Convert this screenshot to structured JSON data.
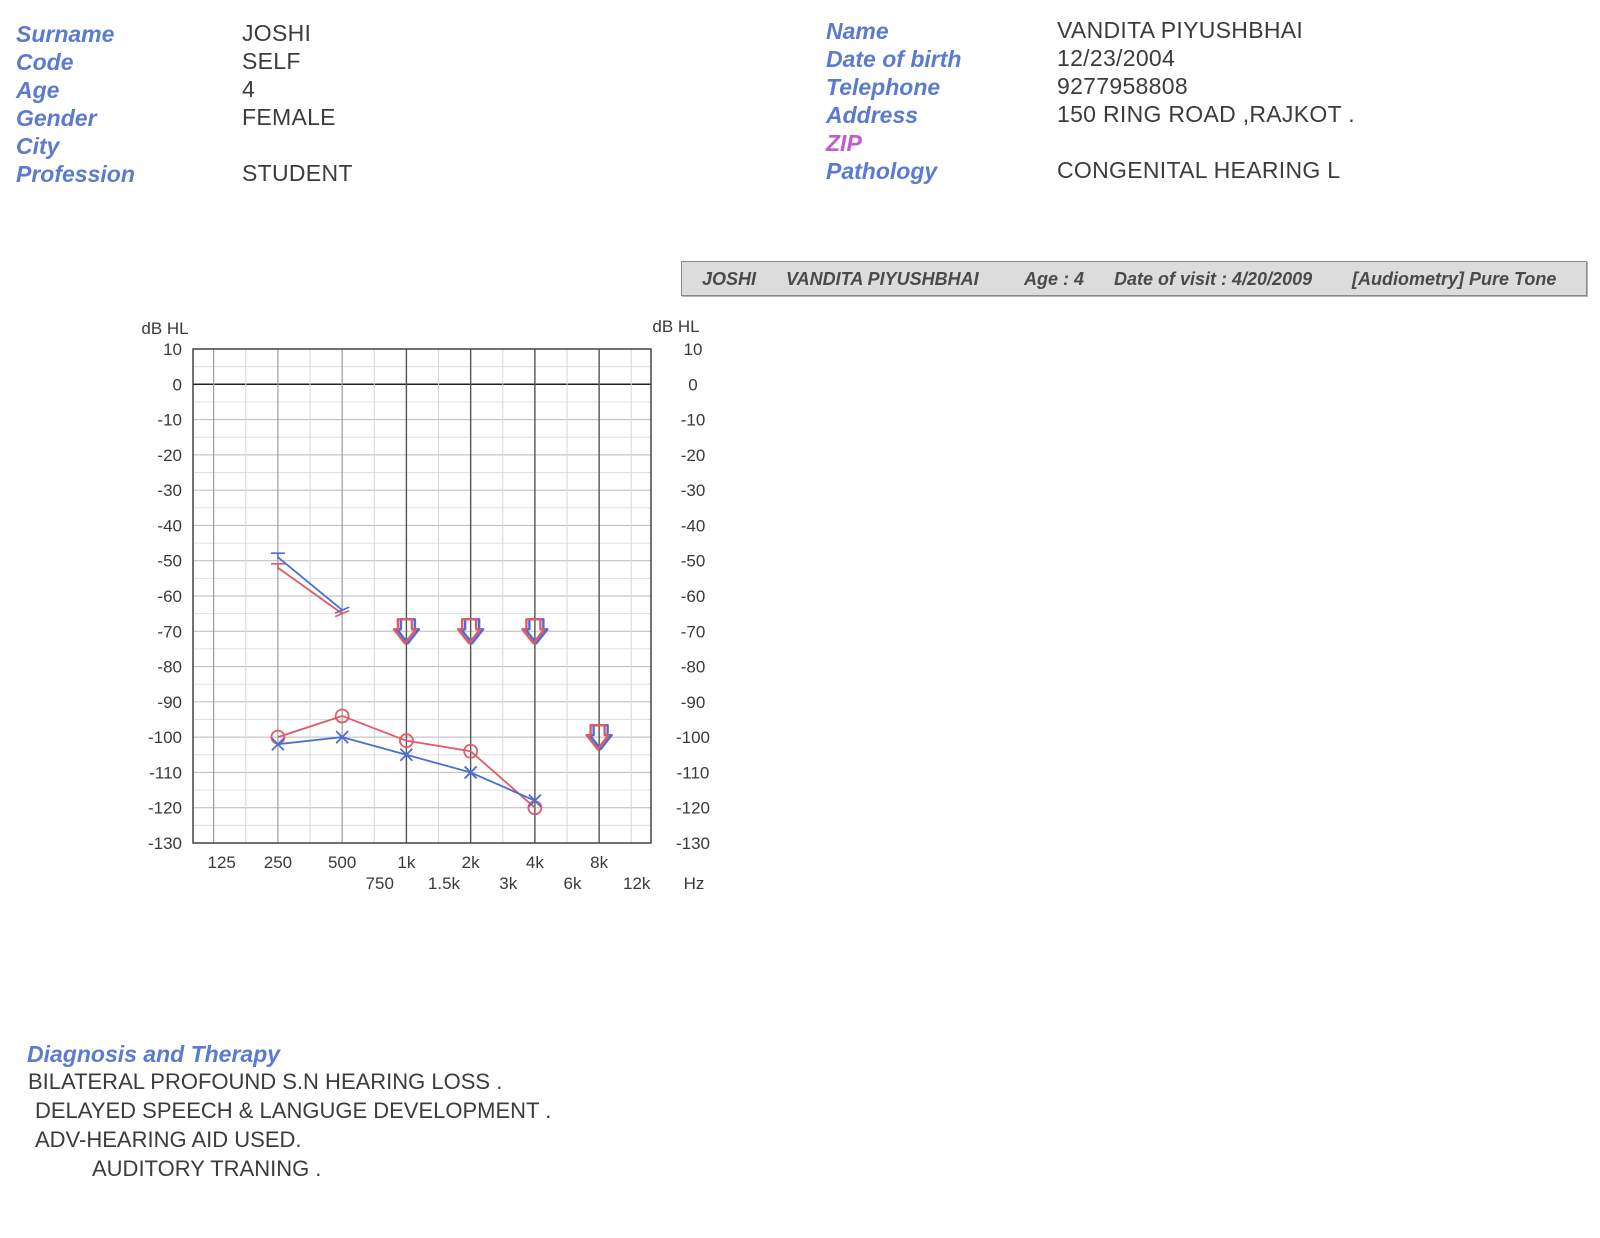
{
  "header": {
    "left": [
      {
        "label": "Surname",
        "value": "JOSHI"
      },
      {
        "label": "Code",
        "value": "SELF"
      },
      {
        "label": "Age",
        "value": "4"
      },
      {
        "label": "Gender",
        "value": "FEMALE"
      },
      {
        "label": "City",
        "value": ""
      },
      {
        "label": "Profession",
        "value": "STUDENT"
      }
    ],
    "right": [
      {
        "label": "Name",
        "value": "VANDITA  PIYUSHBHAI"
      },
      {
        "label": "Date of  birth",
        "value": "12/23/2004"
      },
      {
        "label": "Telephone",
        "value": "9277958808"
      },
      {
        "label": "Address",
        "value": "150 RING ROAD ,RAJKOT ."
      },
      {
        "label": "ZIP",
        "value": ""
      },
      {
        "label": "Pathology",
        "value": "CONGENITAL HEARING L"
      }
    ]
  },
  "title_bar": {
    "surname": "JOSHI",
    "name": "VANDITA  PIYUSHBHAI",
    "age": "Age : 4",
    "visit": "Date of visit : 4/20/2009",
    "test": "[Audiometry] Pure Tone"
  },
  "chart_data": {
    "type": "line",
    "ylabel_left": "dB HL",
    "ylabel_right": "dB HL",
    "xunit": "Hz",
    "ylim": [
      -130,
      10
    ],
    "yticks": [
      10,
      0,
      -10,
      -20,
      -30,
      -40,
      -50,
      -60,
      -70,
      -80,
      -90,
      -100,
      -110,
      -120,
      -130
    ],
    "x_major_ticks": [
      {
        "hz": 125,
        "label": "125"
      },
      {
        "hz": 250,
        "label": "250"
      },
      {
        "hz": 500,
        "label": "500"
      },
      {
        "hz": 1000,
        "label": "1k"
      },
      {
        "hz": 2000,
        "label": "2k"
      },
      {
        "hz": 4000,
        "label": "4k"
      },
      {
        "hz": 8000,
        "label": "8k"
      }
    ],
    "x_minor_ticks": [
      {
        "hz": 750,
        "label": "750"
      },
      {
        "hz": 1500,
        "label": "1.5k"
      },
      {
        "hz": 3000,
        "label": "3k"
      },
      {
        "hz": 6000,
        "label": "6k"
      },
      {
        "hz": 12000,
        "label": "12k"
      }
    ],
    "x_range_hz": [
      100,
      14000
    ],
    "grid": true,
    "series": [
      {
        "ear": "right",
        "kind": "air",
        "color": "#e05a6a",
        "marker": "circle",
        "x": [
          250,
          500,
          1000,
          2000,
          4000
        ],
        "y": [
          -100,
          -94,
          -101,
          -104,
          -120
        ]
      },
      {
        "ear": "left",
        "kind": "air",
        "color": "#4a6fd1",
        "marker": "cross",
        "x": [
          250,
          500,
          1000,
          2000,
          4000
        ],
        "y": [
          -102,
          -100,
          -105,
          -110,
          -118
        ]
      },
      {
        "ear": "right",
        "kind": "bone",
        "color": "#e05a6a",
        "marker": "bracket",
        "x": [
          250,
          500
        ],
        "y": [
          -52,
          -65
        ]
      },
      {
        "ear": "left",
        "kind": "bone",
        "color": "#4a6fd1",
        "marker": "bracket",
        "x": [
          250,
          500
        ],
        "y": [
          -49,
          -64
        ]
      }
    ],
    "no_response": [
      {
        "hz": 1000,
        "y": -70,
        "colors": [
          "#4a6fd1",
          "#e05a6a"
        ]
      },
      {
        "hz": 2000,
        "y": -70,
        "colors": [
          "#4a6fd1",
          "#e05a6a"
        ]
      },
      {
        "hz": 4000,
        "y": -70,
        "colors": [
          "#4a6fd1",
          "#e05a6a"
        ]
      },
      {
        "hz": 8000,
        "y": -100,
        "colors": [
          "#4a6fd1",
          "#e05a6a"
        ]
      }
    ]
  },
  "diagnosis": {
    "heading": "Diagnosis and Therapy",
    "lines": [
      "BILATERAL PROFOUND S.N HEARING LOSS .",
      "DELAYED SPEECH & LANGUGE DEVELOPMENT .",
      "ADV-HEARING AID USED.",
      "AUDITORY TRANING ."
    ]
  }
}
